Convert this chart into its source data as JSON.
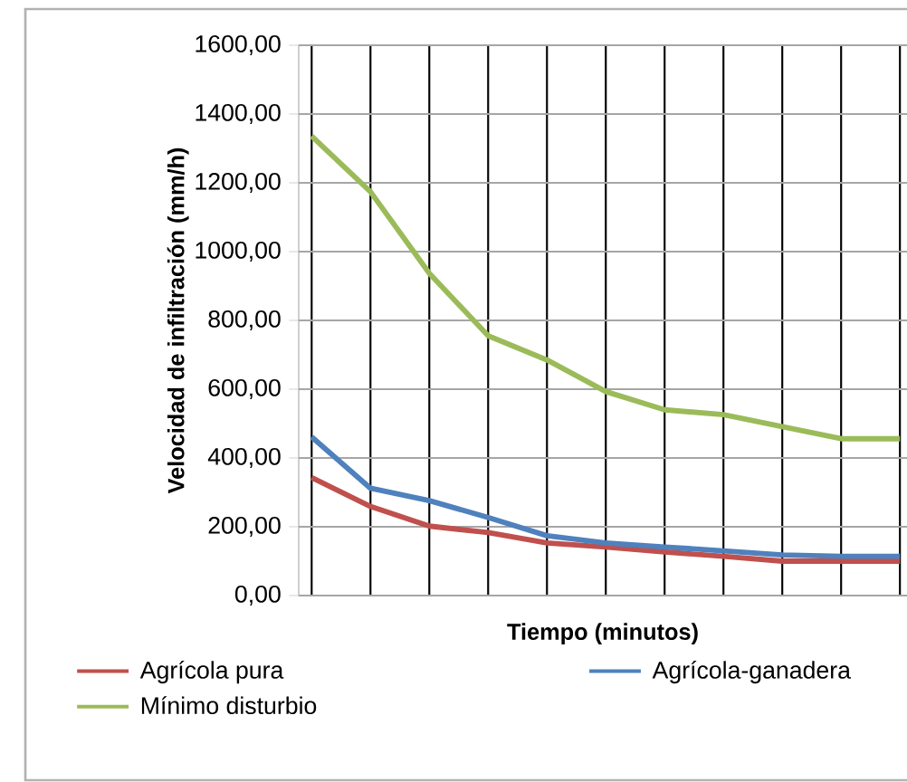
{
  "chart_data": {
    "type": "line",
    "xlabel": "Tiempo (minutos)",
    "ylabel": "Velocidad de infiltración  (mm/h)",
    "categories": [
      null,
      null,
      null,
      null,
      null,
      null,
      null,
      null,
      null,
      null,
      null
    ],
    "series": [
      {
        "name": "Agrícola pura",
        "color": "#c0504d",
        "values": [
          343,
          259,
          202,
          183,
          153,
          141,
          127,
          114,
          100,
          100,
          100
        ]
      },
      {
        "name": "Agrícola-ganadera",
        "color": "#4f81bd",
        "values": [
          461,
          312,
          276,
          227,
          174,
          153,
          141,
          130,
          118,
          114,
          114
        ]
      },
      {
        "name": "Mínimo disturbio",
        "color": "#9bbb59",
        "values": [
          1336,
          1174,
          937,
          755,
          685,
          593,
          540,
          526,
          491,
          456,
          456
        ]
      }
    ],
    "ylim": [
      0,
      1600
    ],
    "yticks": [
      {
        "value": 0,
        "label": "0,00"
      },
      {
        "value": 200,
        "label": "200,00"
      },
      {
        "value": 400,
        "label": "400,00"
      },
      {
        "value": 600,
        "label": "600,00"
      },
      {
        "value": 800,
        "label": "800,00"
      },
      {
        "value": 1000,
        "label": "1000,00"
      },
      {
        "value": 1200,
        "label": "1200,00"
      },
      {
        "value": 1400,
        "label": "1400,00"
      },
      {
        "value": 1600,
        "label": "1600,00"
      }
    ],
    "grid": true,
    "legend": "bottom",
    "marker": "none",
    "line_style": "solid"
  }
}
